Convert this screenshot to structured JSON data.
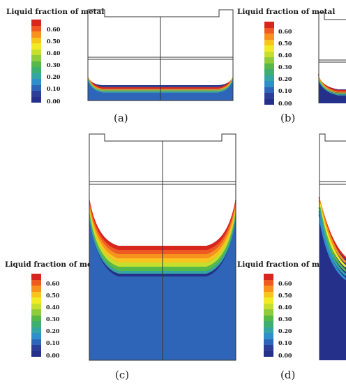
{
  "legend": {
    "title": "Liquid fraction of metal",
    "ticks": [
      "0.60",
      "0.50",
      "0.40",
      "0.30",
      "0.20",
      "0.10",
      "0.00"
    ],
    "colors": [
      "#d7261e",
      "#ef5a23",
      "#f7921e",
      "#f7c51e",
      "#f1ea26",
      "#c6df2e",
      "#8fcb3b",
      "#56b848",
      "#3fae71",
      "#35a5a4",
      "#2f8fc9",
      "#2f65b8",
      "#2d3e99",
      "#24308a"
    ]
  },
  "captions": {
    "a": "(a)",
    "b": "(b)",
    "c": "(c)",
    "d": "(d)"
  }
}
